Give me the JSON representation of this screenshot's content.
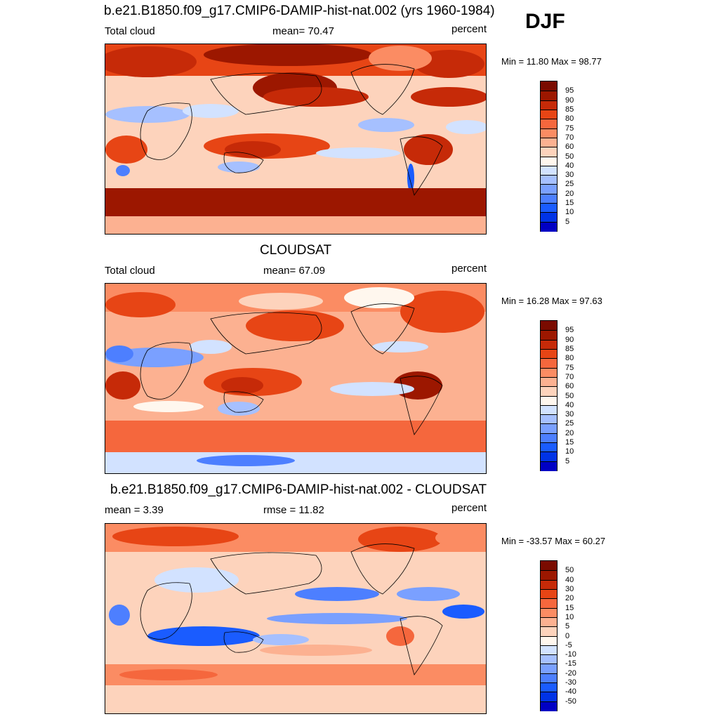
{
  "season": "DJF",
  "colors": {
    "levels_abs": [
      "#00007f",
      "#0000c4",
      "#0033e6",
      "#1a5cff",
      "#4d7fff",
      "#7aa0ff",
      "#a6c0ff",
      "#d2e2ff",
      "#fff7ee",
      "#fdd3bc",
      "#fcb191",
      "#fb8c63",
      "#f5673d",
      "#e74515",
      "#c62a08",
      "#9c1700",
      "#7a0b00"
    ],
    "levels_diff": [
      "#00007f",
      "#0000c4",
      "#0033e6",
      "#1a5cff",
      "#4d7fff",
      "#7aa0ff",
      "#a6c0ff",
      "#d2e2ff",
      "#fff7ee",
      "#fdd3bc",
      "#fcb191",
      "#fb8c63",
      "#f5673d",
      "#e74515",
      "#c62a08",
      "#9c1700",
      "#7a0b00"
    ]
  },
  "chart_data": [
    {
      "type": "heatmap",
      "title": "b.e21.B1850.f09_g17.CMIP6-DAMIP-hist-nat.002 (yrs 1960-1984)",
      "left_label": "Total cloud",
      "center_label": "mean=  70.47",
      "right_label": "percent",
      "minmax": "Min =  11.80 Max =  98.77",
      "mean": 70.47,
      "min": 11.8,
      "max": 98.77,
      "colorbar_labels": [
        "95",
        "90",
        "85",
        "80",
        "75",
        "70",
        "60",
        "50",
        "40",
        "30",
        "25",
        "20",
        "15",
        "10",
        "5"
      ]
    },
    {
      "type": "heatmap",
      "title": "CLOUDSAT",
      "left_label": "Total cloud",
      "center_label": "mean=  67.09",
      "right_label": "percent",
      "minmax": "Min =  16.28 Max =  97.63",
      "mean": 67.09,
      "min": 16.28,
      "max": 97.63,
      "colorbar_labels": [
        "95",
        "90",
        "85",
        "80",
        "75",
        "70",
        "60",
        "50",
        "40",
        "30",
        "25",
        "20",
        "15",
        "10",
        "5"
      ]
    },
    {
      "type": "heatmap",
      "title": "b.e21.B1850.f09_g17.CMIP6-DAMIP-hist-nat.002 - CLOUDSAT",
      "left_label": "mean =   3.39",
      "center_label": "rmse =  11.82",
      "right_label": "percent",
      "minmax": "Min = -33.57 Max =  60.27",
      "mean": 3.39,
      "rmse": 11.82,
      "min": -33.57,
      "max": 60.27,
      "colorbar_labels": [
        "50",
        "40",
        "30",
        "20",
        "15",
        "10",
        "5",
        "0",
        "-5",
        "-10",
        "-15",
        "-20",
        "-30",
        "-40",
        "-50"
      ]
    }
  ]
}
